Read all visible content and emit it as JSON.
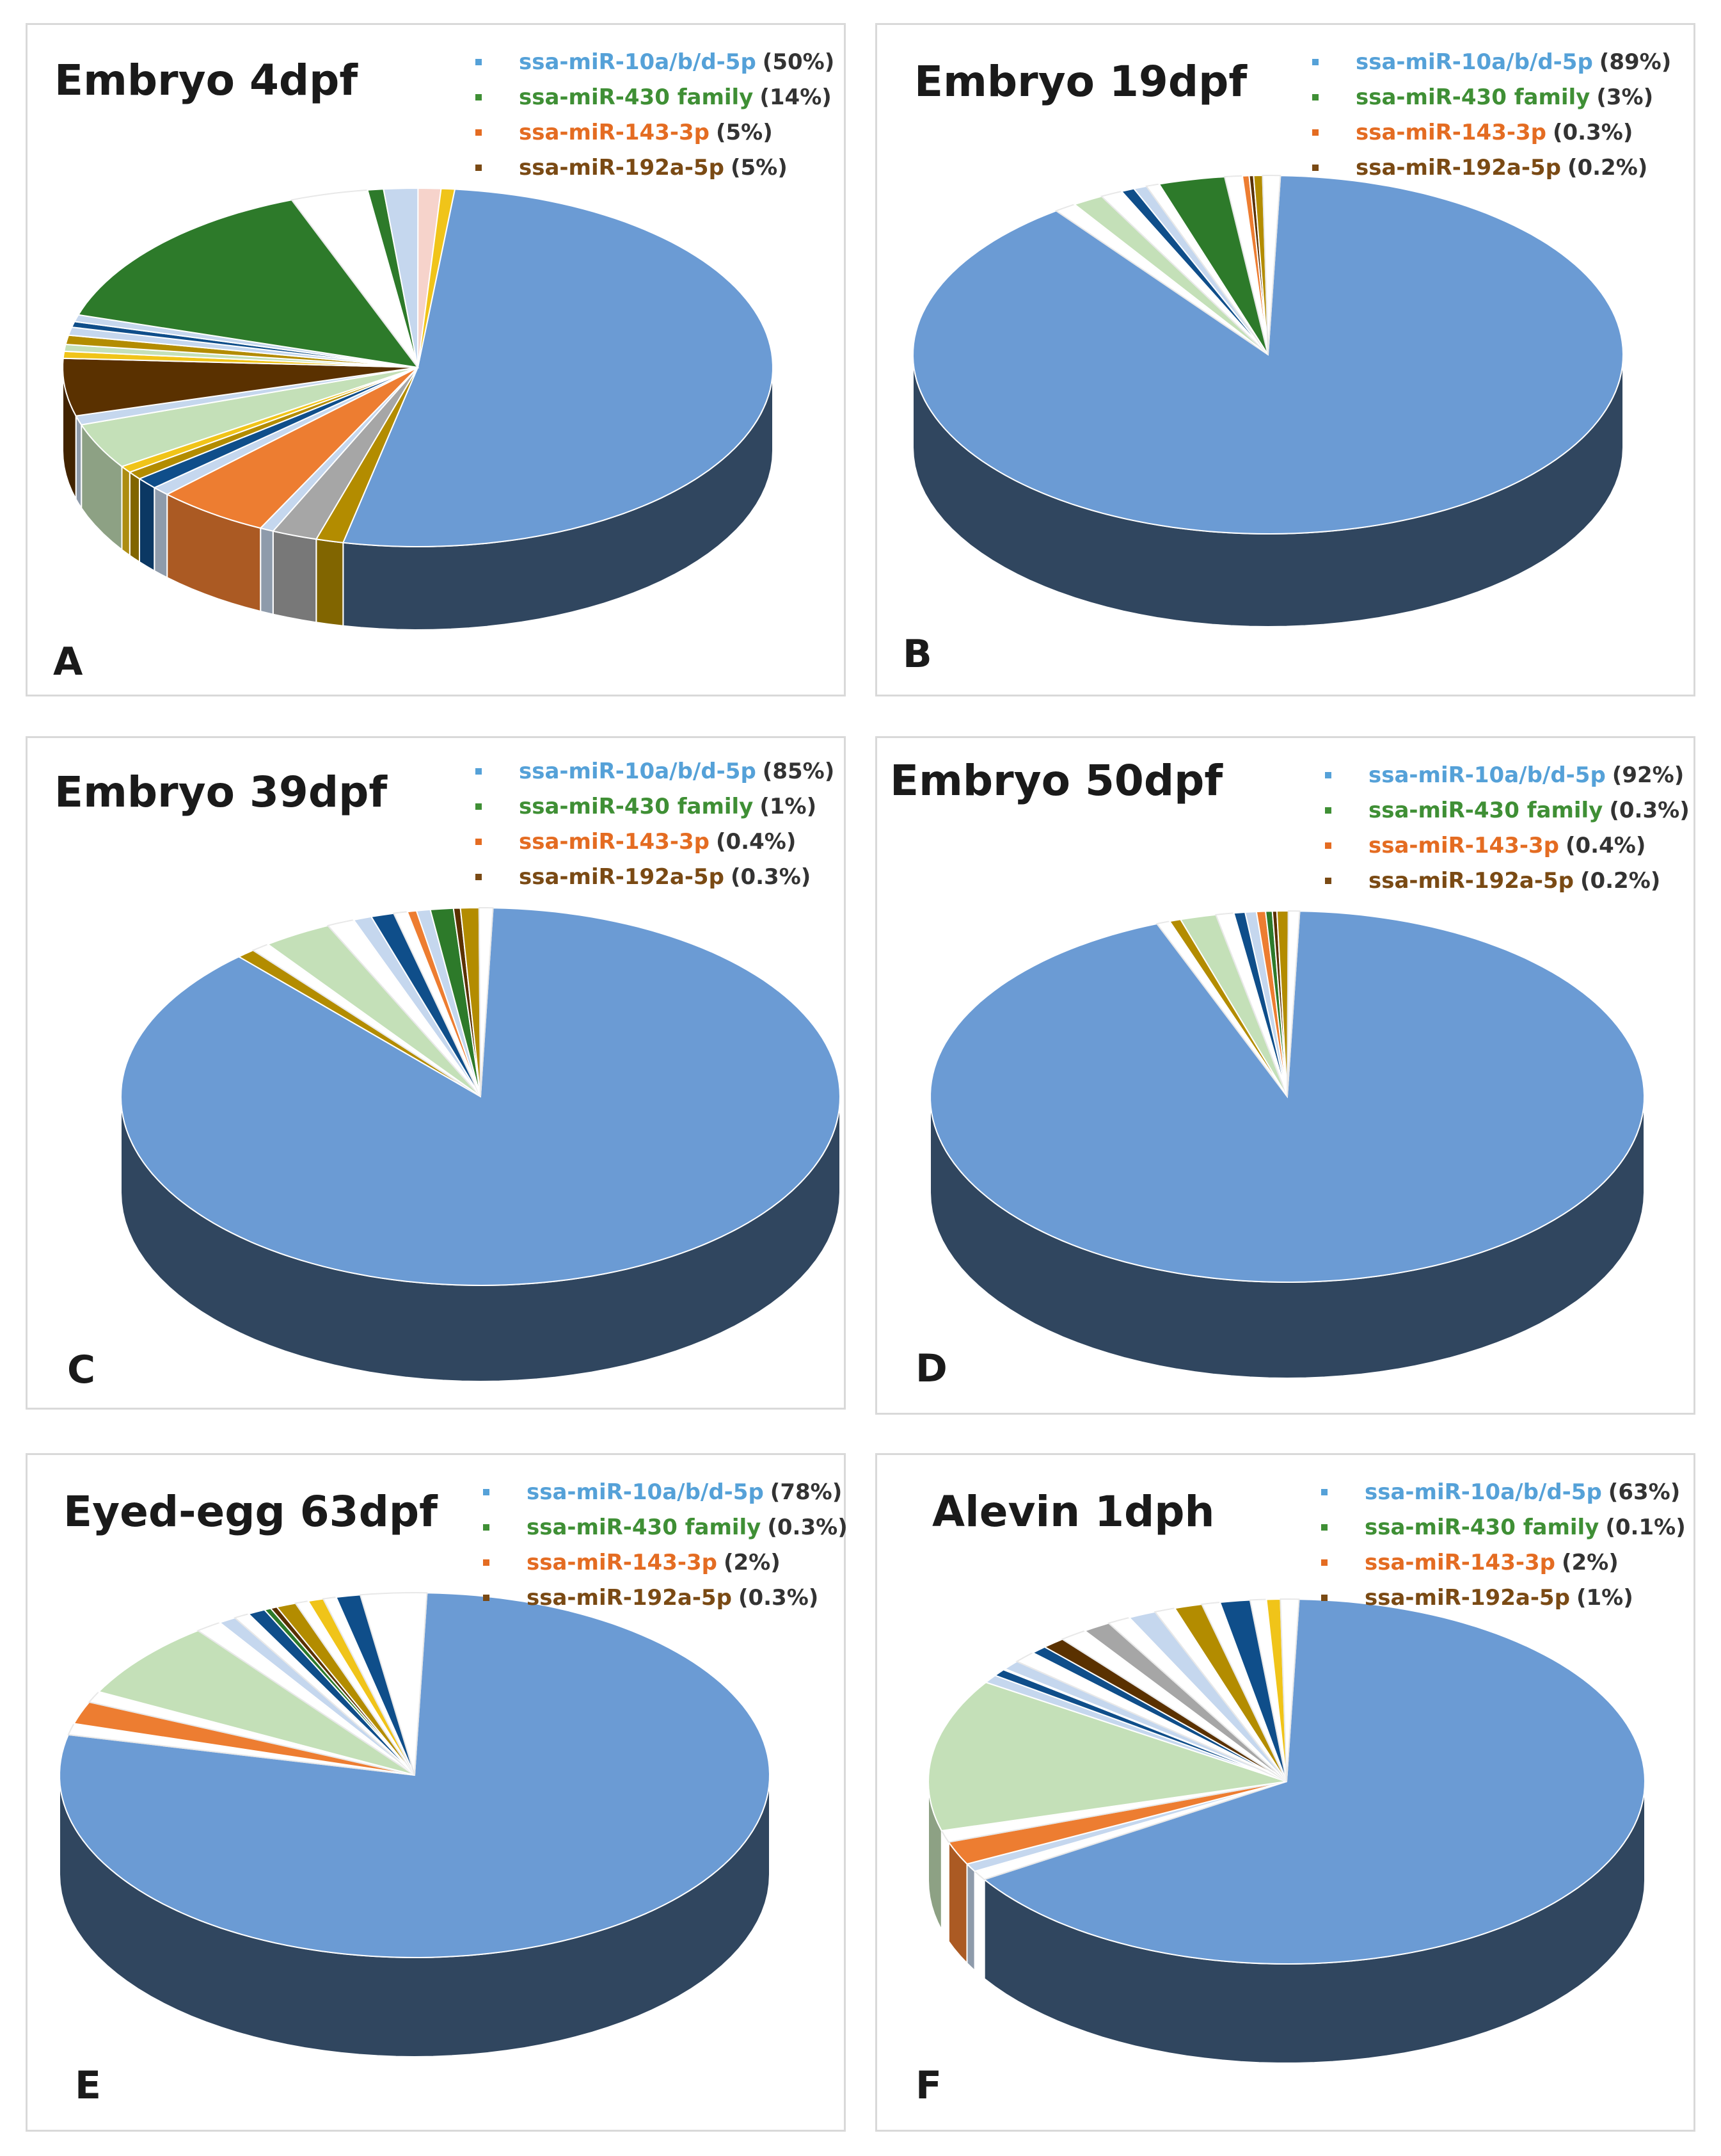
{
  "colors": {
    "mir10": "#6b9bd4",
    "mir430": "#2d7a2a",
    "mir143": "#ed7d31",
    "mir192": "#5a3100",
    "light_green": "#c4e0b8",
    "light_blue": "#c5d7ee",
    "gold": "#b38c00",
    "pink": "#f6d3cb",
    "gray": "#a6a6a6",
    "navy": "#0f4e8a",
    "yellow": "#f0c419",
    "white": "#ffffff"
  },
  "chart_data": [
    {
      "id": "A",
      "type": "pie",
      "title": "Embryo 4dpf",
      "panel_label": "A",
      "legend": [
        {
          "name": "ssa-miR-10a/b/d-5p",
          "pct": "(50%)",
          "color": "#55a1d8"
        },
        {
          "name": "ssa-miR-430 family",
          "pct": "(14%)",
          "color": "#3f8f35"
        },
        {
          "name": "ssa-miR-143-3p",
          "pct": "(5%)",
          "color": "#e46c22"
        },
        {
          "name": "ssa-miR-192a-5p",
          "pct": "(5%)",
          "color": "#7a4a14"
        }
      ],
      "slices": [
        {
          "label": "ssa-miR-10a/b/d-5p",
          "value": 50,
          "color": "mir10"
        },
        {
          "label": "other",
          "value": 1.2,
          "color": "gold"
        },
        {
          "label": "other",
          "value": 2.0,
          "color": "gray"
        },
        {
          "label": "other",
          "value": 0.6,
          "color": "light_blue"
        },
        {
          "label": "ssa-miR-143-3p",
          "value": 5,
          "color": "mir143"
        },
        {
          "label": "other",
          "value": 0.8,
          "color": "light_blue"
        },
        {
          "label": "other",
          "value": 1.0,
          "color": "navy"
        },
        {
          "label": "other",
          "value": 0.7,
          "color": "gold"
        },
        {
          "label": "other",
          "value": 0.6,
          "color": "yellow"
        },
        {
          "label": "other",
          "value": 4.0,
          "color": "light_green"
        },
        {
          "label": "other",
          "value": 0.8,
          "color": "light_blue"
        },
        {
          "label": "ssa-miR-192a-5p",
          "value": 5,
          "color": "mir192"
        },
        {
          "label": "other",
          "value": 0.6,
          "color": "yellow"
        },
        {
          "label": "other",
          "value": 0.6,
          "color": "light_green"
        },
        {
          "label": "other",
          "value": 0.8,
          "color": "gold"
        },
        {
          "label": "other",
          "value": 0.7,
          "color": "light_blue"
        },
        {
          "label": "other",
          "value": 0.5,
          "color": "navy"
        },
        {
          "label": "other",
          "value": 0.6,
          "color": "light_blue"
        },
        {
          "label": "ssa-miR-430 family",
          "value": 14,
          "color": "mir430"
        },
        {
          "label": "other",
          "value": 3.4,
          "color": "white"
        },
        {
          "label": "other",
          "value": 0.7,
          "color": "mir430"
        },
        {
          "label": "other",
          "value": 1.5,
          "color": "light_blue"
        },
        {
          "label": "other",
          "value": 1.0,
          "color": "pink"
        },
        {
          "label": "other",
          "value": 0.6,
          "color": "yellow"
        }
      ]
    },
    {
      "id": "B",
      "type": "pie",
      "title": "Embryo 19dpf",
      "panel_label": "B",
      "legend": [
        {
          "name": "ssa-miR-10a/b/d-5p",
          "pct": "(89%)",
          "color": "#55a1d8"
        },
        {
          "name": "ssa-miR-430 family",
          "pct": "(3%)",
          "color": "#3f8f35"
        },
        {
          "name": "ssa-miR-143-3p",
          "pct": "(0.3%)",
          "color": "#e46c22"
        },
        {
          "name": "ssa-miR-192a-5p",
          "pct": "(0.2%)",
          "color": "#7a4a14"
        }
      ],
      "slices": [
        {
          "label": "ssa-miR-10a/b/d-5p",
          "value": 89,
          "color": "mir10"
        },
        {
          "label": "other",
          "value": 1.0,
          "color": "white"
        },
        {
          "label": "other",
          "value": 1.4,
          "color": "light_green"
        },
        {
          "label": "other",
          "value": 1.0,
          "color": "white"
        },
        {
          "label": "other",
          "value": 0.6,
          "color": "navy"
        },
        {
          "label": "other",
          "value": 0.6,
          "color": "light_blue"
        },
        {
          "label": "other",
          "value": 0.6,
          "color": "white"
        },
        {
          "label": "ssa-miR-430 family",
          "value": 3,
          "color": "mir430"
        },
        {
          "label": "other",
          "value": 0.8,
          "color": "white"
        },
        {
          "label": "ssa-miR-143-3p",
          "value": 0.3,
          "color": "mir143"
        },
        {
          "label": "ssa-miR-192a-5p",
          "value": 0.2,
          "color": "mir192"
        },
        {
          "label": "other",
          "value": 0.4,
          "color": "gold"
        },
        {
          "label": "other",
          "value": 0.8,
          "color": "white"
        }
      ]
    },
    {
      "id": "C",
      "type": "pie",
      "title": "Embryo 39dpf",
      "panel_label": "C",
      "legend": [
        {
          "name": "ssa-miR-10a/b/d-5p",
          "pct": "(85%)",
          "color": "#55a1d8"
        },
        {
          "name": "ssa-miR-430 family",
          "pct": "(1%)",
          "color": "#3f8f35"
        },
        {
          "name": "ssa-miR-143-3p",
          "pct": "(0.4%)",
          "color": "#e46c22"
        },
        {
          "name": "ssa-miR-192a-5p",
          "pct": "(0.3%)",
          "color": "#7a4a14"
        }
      ],
      "slices": [
        {
          "label": "ssa-miR-10a/b/d-5p",
          "value": 85,
          "color": "mir10"
        },
        {
          "label": "other",
          "value": 0.8,
          "color": "gold"
        },
        {
          "label": "other",
          "value": 0.8,
          "color": "white"
        },
        {
          "label": "other",
          "value": 3.0,
          "color": "light_green"
        },
        {
          "label": "other",
          "value": 1.2,
          "color": "white"
        },
        {
          "label": "other",
          "value": 0.8,
          "color": "light_blue"
        },
        {
          "label": "other",
          "value": 1.0,
          "color": "navy"
        },
        {
          "label": "other",
          "value": 0.6,
          "color": "white"
        },
        {
          "label": "ssa-miR-143-3p",
          "value": 0.4,
          "color": "mir143"
        },
        {
          "label": "other",
          "value": 0.6,
          "color": "light_blue"
        },
        {
          "label": "ssa-miR-430 family",
          "value": 1,
          "color": "mir430"
        },
        {
          "label": "ssa-miR-192a-5p",
          "value": 0.3,
          "color": "mir192"
        },
        {
          "label": "other",
          "value": 0.8,
          "color": "gold"
        },
        {
          "label": "other",
          "value": 0.6,
          "color": "white"
        }
      ]
    },
    {
      "id": "D",
      "type": "pie",
      "title": "Embryo 50dpf",
      "panel_label": "D",
      "legend": [
        {
          "name": "ssa-miR-10a/b/d-5p",
          "pct": "(92%)",
          "color": "#55a1d8"
        },
        {
          "name": "ssa-miR-430 family",
          "pct": "(0.3%)",
          "color": "#3f8f35"
        },
        {
          "name": "ssa-miR-143-3p",
          "pct": "(0.4%)",
          "color": "#e46c22"
        },
        {
          "name": "ssa-miR-192a-5p",
          "pct": "(0.2%)",
          "color": "#7a4a14"
        }
      ],
      "slices": [
        {
          "label": "ssa-miR-10a/b/d-5p",
          "value": 92,
          "color": "mir10"
        },
        {
          "label": "other",
          "value": 0.6,
          "color": "white"
        },
        {
          "label": "other",
          "value": 0.5,
          "color": "gold"
        },
        {
          "label": "other",
          "value": 1.6,
          "color": "light_green"
        },
        {
          "label": "other",
          "value": 0.8,
          "color": "white"
        },
        {
          "label": "other",
          "value": 0.5,
          "color": "navy"
        },
        {
          "label": "other",
          "value": 0.5,
          "color": "light_blue"
        },
        {
          "label": "ssa-miR-143-3p",
          "value": 0.4,
          "color": "mir143"
        },
        {
          "label": "ssa-miR-430 family",
          "value": 0.3,
          "color": "mir430"
        },
        {
          "label": "ssa-miR-192a-5p",
          "value": 0.2,
          "color": "mir192"
        },
        {
          "label": "other",
          "value": 0.5,
          "color": "gold"
        },
        {
          "label": "other",
          "value": 0.5,
          "color": "white"
        }
      ]
    },
    {
      "id": "E",
      "type": "pie",
      "title": "Eyed-egg 63dpf",
      "panel_label": "E",
      "legend": [
        {
          "name": "ssa-miR-10a/b/d-5p",
          "pct": "(78%)",
          "color": "#55a1d8"
        },
        {
          "name": "ssa-miR-430 family",
          "pct": "(0.3%)",
          "color": "#3f8f35"
        },
        {
          "name": "ssa-miR-143-3p",
          "pct": "(2%)",
          "color": "#e46c22"
        },
        {
          "name": "ssa-miR-192a-5p",
          "pct": "(0.3%)",
          "color": "#7a4a14"
        }
      ],
      "slices": [
        {
          "label": "ssa-miR-10a/b/d-5p",
          "value": 78,
          "color": "mir10"
        },
        {
          "label": "other",
          "value": 1.0,
          "color": "white"
        },
        {
          "label": "ssa-miR-143-3p",
          "value": 2,
          "color": "mir143"
        },
        {
          "label": "other",
          "value": 1.0,
          "color": "white"
        },
        {
          "label": "other",
          "value": 7.0,
          "color": "light_green"
        },
        {
          "label": "other",
          "value": 1.2,
          "color": "white"
        },
        {
          "label": "other",
          "value": 0.8,
          "color": "light_blue"
        },
        {
          "label": "other",
          "value": 0.7,
          "color": "white"
        },
        {
          "label": "other",
          "value": 0.8,
          "color": "navy"
        },
        {
          "label": "ssa-miR-430 family",
          "value": 0.3,
          "color": "mir430"
        },
        {
          "label": "ssa-miR-192a-5p",
          "value": 0.3,
          "color": "mir192"
        },
        {
          "label": "other",
          "value": 0.9,
          "color": "gold"
        },
        {
          "label": "other",
          "value": 0.6,
          "color": "white"
        },
        {
          "label": "other",
          "value": 0.7,
          "color": "yellow"
        },
        {
          "label": "other",
          "value": 0.6,
          "color": "white"
        },
        {
          "label": "other",
          "value": 1.1,
          "color": "navy"
        },
        {
          "label": "other",
          "value": 3.0,
          "color": "white"
        }
      ]
    },
    {
      "id": "F",
      "type": "pie",
      "title": "Alevin 1dph",
      "panel_label": "F",
      "legend": [
        {
          "name": "ssa-miR-10a/b/d-5p",
          "pct": "(63%)",
          "color": "#55a1d8"
        },
        {
          "name": "ssa-miR-430 family",
          "pct": "(0.1%)",
          "color": "#3f8f35"
        },
        {
          "name": "ssa-miR-143-3p",
          "pct": "(2%)",
          "color": "#e46c22"
        },
        {
          "name": "ssa-miR-192a-5p",
          "pct": "(1%)",
          "color": "#7a4a14"
        }
      ],
      "slices": [
        {
          "label": "ssa-miR-10a/b/d-5p",
          "value": 63,
          "color": "mir10"
        },
        {
          "label": "other",
          "value": 0.8,
          "color": "white"
        },
        {
          "label": "other",
          "value": 0.7,
          "color": "light_blue"
        },
        {
          "label": "ssa-miR-143-3p",
          "value": 2,
          "color": "mir143"
        },
        {
          "label": "other",
          "value": 1.0,
          "color": "white"
        },
        {
          "label": "other",
          "value": 13.0,
          "color": "light_green"
        },
        {
          "label": "other",
          "value": 0.7,
          "color": "light_blue"
        },
        {
          "label": "other",
          "value": 0.6,
          "color": "navy"
        },
        {
          "label": "ssa-miR-430 family",
          "value": 0.1,
          "color": "mir430"
        },
        {
          "label": "other",
          "value": 0.8,
          "color": "light_blue"
        },
        {
          "label": "other",
          "value": 1.0,
          "color": "white"
        },
        {
          "label": "other",
          "value": 0.7,
          "color": "navy"
        },
        {
          "label": "ssa-miR-192a-5p",
          "value": 1,
          "color": "mir192"
        },
        {
          "label": "other",
          "value": 1.2,
          "color": "white"
        },
        {
          "label": "other",
          "value": 1.2,
          "color": "gray"
        },
        {
          "label": "other",
          "value": 1.0,
          "color": "white"
        },
        {
          "label": "other",
          "value": 1.2,
          "color": "light_blue"
        },
        {
          "label": "other",
          "value": 0.9,
          "color": "white"
        },
        {
          "label": "other",
          "value": 1.2,
          "color": "gold"
        },
        {
          "label": "other",
          "value": 0.8,
          "color": "white"
        },
        {
          "label": "other",
          "value": 1.3,
          "color": "navy"
        },
        {
          "label": "other",
          "value": 0.7,
          "color": "white"
        },
        {
          "label": "other",
          "value": 0.6,
          "color": "yellow"
        },
        {
          "label": "other",
          "value": 0.8,
          "color": "white"
        }
      ]
    }
  ]
}
